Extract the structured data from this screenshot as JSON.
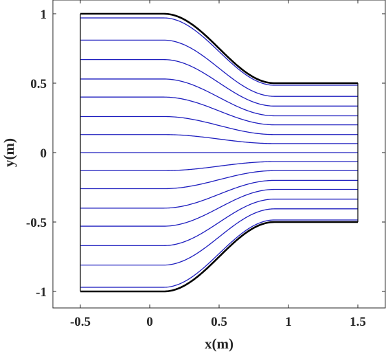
{
  "chart_data": {
    "type": "line",
    "title": "",
    "xlabel": "x(m)",
    "ylabel": "y(m)",
    "xlim": [
      -0.5,
      1.5
    ],
    "ylim": [
      -1,
      1
    ],
    "xticks": [
      "-0.5",
      "0",
      "0.5",
      "1",
      "1.5"
    ],
    "yticks": [
      "1",
      "0.5",
      "0",
      "-0.5",
      "-1"
    ],
    "xtick_values": [
      -0.5,
      0,
      0.5,
      1,
      1.5
    ],
    "ytick_values": [
      1,
      0.5,
      0,
      -0.5,
      -1
    ],
    "grid": false,
    "legend": "none",
    "boundary": {
      "color": "#000000",
      "inlet_half_width": 1.0,
      "outlet_half_width": 0.5,
      "contraction_start_x": 0.1,
      "contraction_end_x": 0.9,
      "x_start": -0.5,
      "x_end": 1.5
    },
    "streamlines": {
      "color": "#1f1fbf",
      "inlet_y": [
        0.97,
        0.81,
        0.67,
        0.53,
        0.4,
        0.26,
        0.13,
        0.0,
        -0.13,
        -0.26,
        -0.4,
        -0.53,
        -0.67,
        -0.81,
        -0.97
      ]
    }
  }
}
